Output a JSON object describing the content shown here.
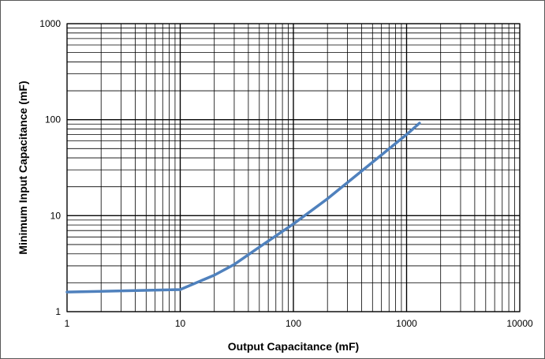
{
  "chart_data": {
    "type": "line",
    "title": "",
    "xlabel": "Output Capacitance (mF)",
    "ylabel": "Minimum Input Capacitance (mF)",
    "xscale": "log",
    "yscale": "log",
    "xlim": [
      1,
      10000
    ],
    "ylim": [
      1,
      1000
    ],
    "grid": true,
    "x_ticks": [
      "1",
      "10",
      "100",
      "1000",
      "10000"
    ],
    "y_ticks": [
      "1",
      "10",
      "100",
      "1000"
    ],
    "series": [
      {
        "color": "#4F81BD",
        "x": [
          1,
          10,
          20,
          30,
          50,
          100,
          200,
          500,
          1000,
          1300
        ],
        "y": [
          1.6,
          1.7,
          2.4,
          3.1,
          4.7,
          8.2,
          15,
          36,
          70,
          92
        ]
      }
    ]
  },
  "colors": {
    "grid": "#000000",
    "line": "#4F81BD",
    "frame": "#595959"
  }
}
